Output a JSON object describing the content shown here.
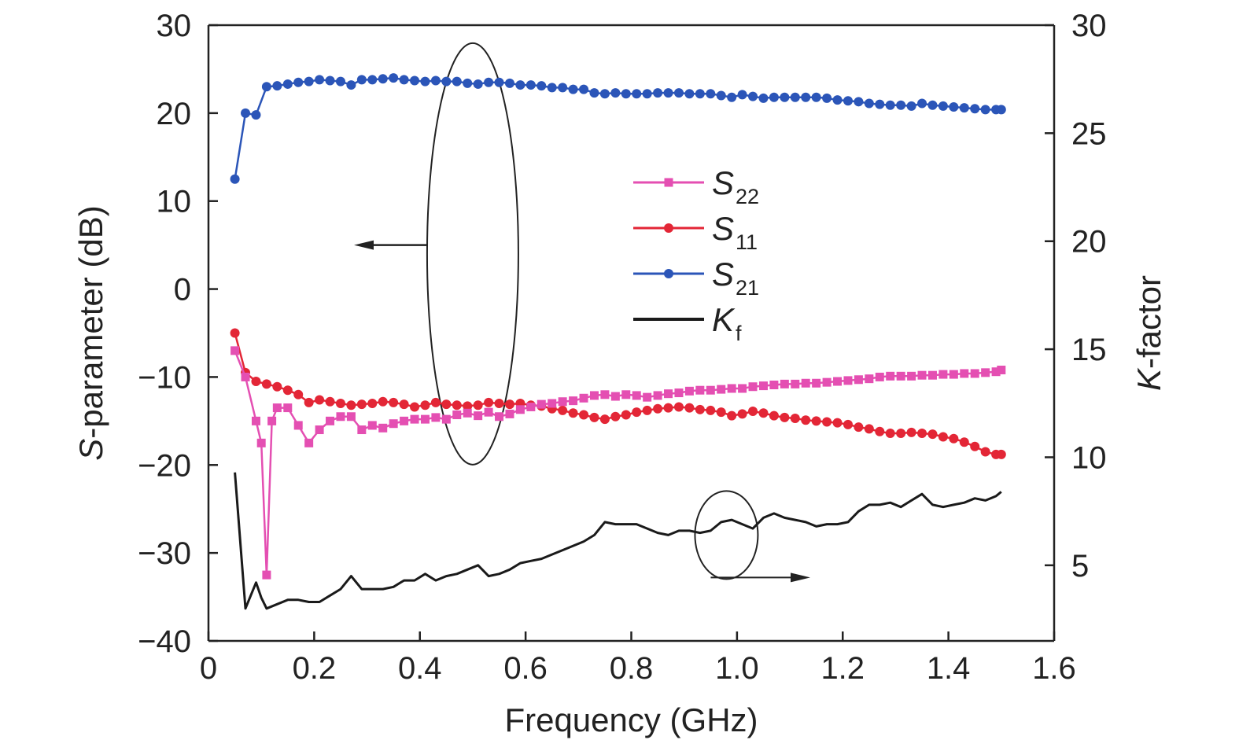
{
  "chart_data": {
    "type": "line",
    "xlabel": "Frequency (GHz)",
    "ylabel_left": {
      "italic": "S",
      "rest": "-parameter (dB)"
    },
    "ylabel_right": {
      "italic": "K",
      "rest": "-factor"
    },
    "xlim": [
      0,
      1.6
    ],
    "ylim_left": [
      -40,
      30
    ],
    "ylim_right": [
      1.5,
      30
    ],
    "x_ticks": [
      "0",
      "0.2",
      "0.4",
      "0.6",
      "0.8",
      "1.0",
      "1.2",
      "1.4",
      "1.6"
    ],
    "y_left_ticks": [
      "30",
      "20",
      "10",
      "0",
      "−10",
      "−20",
      "−30",
      "−40"
    ],
    "y_right_ticks": [
      "30",
      "25",
      "20",
      "15",
      "10",
      "5"
    ],
    "legend_position": "center",
    "series": [
      {
        "name": "S22",
        "label_main": "S",
        "label_sub": "22",
        "axis": "left",
        "color": "#e44fb2",
        "marker": "square",
        "x": [
          0.05,
          0.07,
          0.09,
          0.1,
          0.11,
          0.12,
          0.13,
          0.15,
          0.17,
          0.19,
          0.21,
          0.23,
          0.25,
          0.27,
          0.29,
          0.31,
          0.33,
          0.35,
          0.37,
          0.39,
          0.41,
          0.43,
          0.45,
          0.47,
          0.49,
          0.51,
          0.53,
          0.55,
          0.57,
          0.59,
          0.61,
          0.63,
          0.65,
          0.67,
          0.69,
          0.71,
          0.73,
          0.75,
          0.77,
          0.79,
          0.81,
          0.83,
          0.85,
          0.87,
          0.89,
          0.91,
          0.93,
          0.95,
          0.97,
          0.99,
          1.01,
          1.03,
          1.05,
          1.07,
          1.09,
          1.11,
          1.13,
          1.15,
          1.17,
          1.19,
          1.21,
          1.23,
          1.25,
          1.27,
          1.29,
          1.31,
          1.33,
          1.35,
          1.37,
          1.39,
          1.41,
          1.43,
          1.45,
          1.47,
          1.49,
          1.5
        ],
        "values": [
          -7,
          -10,
          -15,
          -17.5,
          -32.5,
          -15,
          -13.5,
          -13.5,
          -15.5,
          -17.5,
          -16,
          -15,
          -14.5,
          -14.5,
          -16,
          -15.5,
          -15.8,
          -15.3,
          -15.0,
          -14.8,
          -14.8,
          -14.6,
          -14.8,
          -14.3,
          -14.1,
          -14.4,
          -14.0,
          -14.5,
          -14.2,
          -13.7,
          -13.4,
          -13.1,
          -13.0,
          -12.8,
          -12.7,
          -12.4,
          -12.1,
          -12.0,
          -12.2,
          -12.0,
          -12.1,
          -12.3,
          -12.1,
          -11.9,
          -11.8,
          -11.6,
          -11.5,
          -11.5,
          -11.4,
          -11.3,
          -11.3,
          -11.1,
          -11.0,
          -10.9,
          -10.8,
          -10.8,
          -10.7,
          -10.7,
          -10.6,
          -10.5,
          -10.4,
          -10.3,
          -10.2,
          -10.0,
          -9.9,
          -9.9,
          -9.9,
          -9.8,
          -9.8,
          -9.7,
          -9.7,
          -9.6,
          -9.6,
          -9.5,
          -9.4,
          -9.2
        ]
      },
      {
        "name": "S11",
        "label_main": "S",
        "label_sub": "11",
        "axis": "left",
        "color": "#e32636",
        "marker": "circle",
        "x": [
          0.05,
          0.07,
          0.09,
          0.11,
          0.13,
          0.15,
          0.17,
          0.19,
          0.21,
          0.23,
          0.25,
          0.27,
          0.29,
          0.31,
          0.33,
          0.35,
          0.37,
          0.39,
          0.41,
          0.43,
          0.45,
          0.47,
          0.49,
          0.51,
          0.53,
          0.55,
          0.57,
          0.59,
          0.61,
          0.63,
          0.65,
          0.67,
          0.69,
          0.71,
          0.73,
          0.75,
          0.77,
          0.79,
          0.81,
          0.83,
          0.85,
          0.87,
          0.89,
          0.91,
          0.93,
          0.95,
          0.97,
          0.99,
          1.01,
          1.03,
          1.05,
          1.07,
          1.09,
          1.11,
          1.13,
          1.15,
          1.17,
          1.19,
          1.21,
          1.23,
          1.25,
          1.27,
          1.29,
          1.31,
          1.33,
          1.35,
          1.37,
          1.39,
          1.41,
          1.43,
          1.45,
          1.47,
          1.49,
          1.5
        ],
        "values": [
          -5,
          -9.5,
          -10.5,
          -10.8,
          -11.1,
          -11.5,
          -12,
          -12.9,
          -12.6,
          -12.8,
          -13.0,
          -13.2,
          -13.1,
          -13.0,
          -12.8,
          -12.9,
          -13.1,
          -13.4,
          -13.2,
          -12.9,
          -13.1,
          -13.2,
          -13.3,
          -13.2,
          -12.9,
          -13.0,
          -13.1,
          -13.0,
          -13.2,
          -13.3,
          -13.6,
          -13.8,
          -14.1,
          -14.3,
          -14.6,
          -14.8,
          -14.5,
          -14.3,
          -14.0,
          -13.8,
          -13.6,
          -13.5,
          -13.4,
          -13.5,
          -13.7,
          -13.8,
          -14.0,
          -14.4,
          -14.2,
          -13.9,
          -14.1,
          -14.4,
          -14.6,
          -14.7,
          -14.9,
          -15.0,
          -15.1,
          -15.2,
          -15.4,
          -15.7,
          -15.9,
          -16.2,
          -16.4,
          -16.4,
          -16.3,
          -16.4,
          -16.5,
          -16.8,
          -17.0,
          -17.4,
          -17.9,
          -18.5,
          -18.8,
          -18.8
        ]
      },
      {
        "name": "S21",
        "label_main": "S",
        "label_sub": "21",
        "axis": "left",
        "color": "#2b55b8",
        "marker": "circle",
        "x": [
          0.05,
          0.07,
          0.09,
          0.11,
          0.13,
          0.15,
          0.17,
          0.19,
          0.21,
          0.23,
          0.25,
          0.27,
          0.29,
          0.31,
          0.33,
          0.35,
          0.37,
          0.39,
          0.41,
          0.43,
          0.45,
          0.47,
          0.49,
          0.51,
          0.53,
          0.55,
          0.57,
          0.59,
          0.61,
          0.63,
          0.65,
          0.67,
          0.69,
          0.71,
          0.73,
          0.75,
          0.77,
          0.79,
          0.81,
          0.83,
          0.85,
          0.87,
          0.89,
          0.91,
          0.93,
          0.95,
          0.97,
          0.99,
          1.01,
          1.03,
          1.05,
          1.07,
          1.09,
          1.11,
          1.13,
          1.15,
          1.17,
          1.19,
          1.21,
          1.23,
          1.25,
          1.27,
          1.29,
          1.31,
          1.33,
          1.35,
          1.37,
          1.39,
          1.41,
          1.43,
          1.45,
          1.47,
          1.49,
          1.5
        ],
        "values": [
          12.5,
          20.0,
          19.8,
          23.0,
          23.1,
          23.3,
          23.5,
          23.6,
          23.8,
          23.7,
          23.6,
          23.2,
          23.8,
          23.8,
          23.9,
          24.0,
          23.8,
          23.7,
          23.6,
          23.7,
          23.6,
          23.6,
          23.4,
          23.3,
          23.5,
          23.5,
          23.4,
          23.2,
          23.2,
          23.1,
          22.9,
          22.9,
          22.7,
          22.7,
          22.3,
          22.2,
          22.3,
          22.2,
          22.2,
          22.2,
          22.3,
          22.3,
          22.3,
          22.2,
          22.2,
          22.2,
          22.0,
          21.8,
          22.1,
          21.9,
          21.7,
          21.8,
          21.8,
          21.8,
          21.8,
          21.8,
          21.7,
          21.5,
          21.4,
          21.3,
          21.1,
          21.0,
          20.9,
          20.9,
          20.8,
          21.1,
          20.9,
          20.8,
          20.7,
          20.6,
          20.5,
          20.4,
          20.4,
          20.4
        ]
      },
      {
        "name": "Kf",
        "label_main": "K",
        "label_sub": "f",
        "axis": "right",
        "color": "#1a1a1a",
        "marker": "none",
        "x": [
          0.05,
          0.07,
          0.09,
          0.1,
          0.11,
          0.13,
          0.15,
          0.17,
          0.19,
          0.21,
          0.23,
          0.25,
          0.27,
          0.29,
          0.31,
          0.33,
          0.35,
          0.37,
          0.39,
          0.41,
          0.43,
          0.45,
          0.47,
          0.49,
          0.51,
          0.53,
          0.55,
          0.57,
          0.59,
          0.61,
          0.63,
          0.65,
          0.67,
          0.69,
          0.71,
          0.73,
          0.75,
          0.77,
          0.79,
          0.81,
          0.83,
          0.85,
          0.87,
          0.89,
          0.91,
          0.93,
          0.95,
          0.97,
          0.99,
          1.01,
          1.03,
          1.05,
          1.07,
          1.09,
          1.11,
          1.13,
          1.15,
          1.17,
          1.19,
          1.21,
          1.23,
          1.25,
          1.27,
          1.29,
          1.31,
          1.33,
          1.35,
          1.37,
          1.39,
          1.41,
          1.43,
          1.45,
          1.47,
          1.49,
          1.5
        ],
        "values": [
          9.3,
          3.0,
          4.2,
          3.5,
          3.0,
          3.2,
          3.4,
          3.4,
          3.3,
          3.3,
          3.6,
          3.9,
          4.5,
          3.9,
          3.9,
          3.9,
          4.0,
          4.3,
          4.3,
          4.6,
          4.3,
          4.5,
          4.6,
          4.8,
          5.0,
          4.5,
          4.6,
          4.8,
          5.1,
          5.2,
          5.3,
          5.5,
          5.7,
          5.9,
          6.1,
          6.4,
          7.0,
          6.9,
          6.9,
          6.9,
          6.7,
          6.5,
          6.4,
          6.6,
          6.6,
          6.5,
          6.6,
          7.0,
          7.1,
          6.9,
          6.7,
          7.2,
          7.4,
          7.2,
          7.1,
          7.0,
          6.8,
          6.9,
          6.9,
          7.0,
          7.5,
          7.8,
          7.8,
          7.9,
          7.7,
          8.0,
          8.3,
          7.8,
          7.7,
          7.8,
          7.9,
          8.1,
          8.0,
          8.2,
          8.4
        ]
      }
    ]
  }
}
